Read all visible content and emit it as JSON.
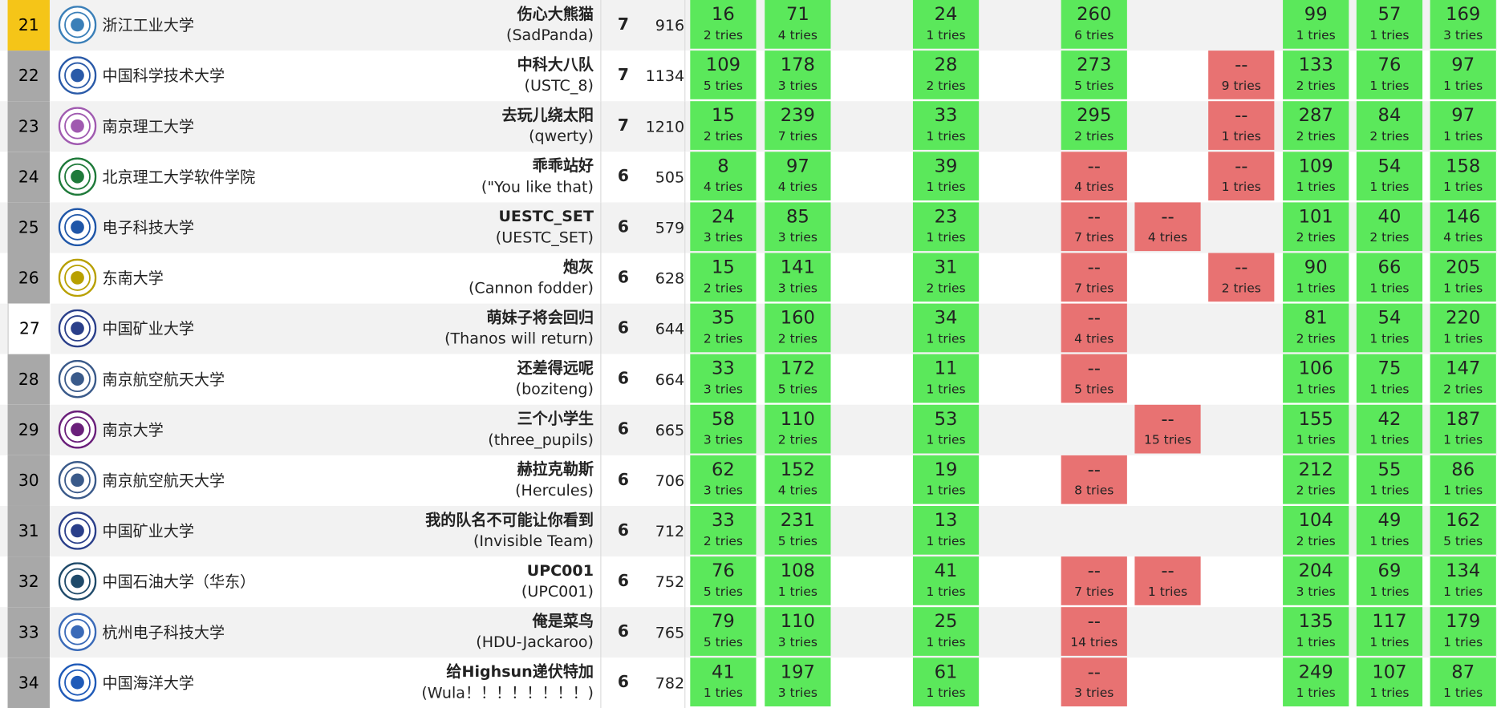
{
  "columns_left": [
    722,
    800,
    955,
    1110,
    1187,
    1264,
    1342,
    1419,
    1496
  ],
  "rows": [
    {
      "rank": "21",
      "rank_style": "gold",
      "school": "浙江工业大学",
      "team_cn": "伤心大熊猫",
      "team_en": "(SadPanda)",
      "solved": "7",
      "penalty": "916",
      "logo_color": "#3a7fb8",
      "cells": [
        {
          "s": "ac",
          "t": "16",
          "n": "2 tries"
        },
        {
          "s": "ac",
          "t": "71",
          "n": "4 tries"
        },
        {
          "s": "ac",
          "t": "24",
          "n": "1 tries"
        },
        {
          "s": "ac",
          "t": "260",
          "n": "6 tries"
        },
        null,
        null,
        {
          "s": "ac",
          "t": "99",
          "n": "1 tries"
        },
        {
          "s": "ac",
          "t": "57",
          "n": "1 tries"
        },
        {
          "s": "ac",
          "t": "169",
          "n": "3 tries"
        }
      ]
    },
    {
      "rank": "22",
      "rank_style": "grey",
      "school": "中国科学技术大学",
      "team_cn": "中科大八队",
      "team_en": "(USTC_8)",
      "solved": "7",
      "penalty": "1134",
      "logo_color": "#2a5aa8",
      "cells": [
        {
          "s": "ac",
          "t": "109",
          "n": "5 tries"
        },
        {
          "s": "ac",
          "t": "178",
          "n": "3 tries"
        },
        {
          "s": "ac",
          "t": "28",
          "n": "2 tries"
        },
        {
          "s": "ac",
          "t": "273",
          "n": "5 tries"
        },
        null,
        {
          "s": "wa",
          "t": "--",
          "n": "9 tries"
        },
        {
          "s": "ac",
          "t": "133",
          "n": "2 tries"
        },
        {
          "s": "ac",
          "t": "76",
          "n": "1 tries"
        },
        {
          "s": "ac",
          "t": "97",
          "n": "1 tries"
        }
      ]
    },
    {
      "rank": "23",
      "rank_style": "grey",
      "school": "南京理工大学",
      "team_cn": "去玩儿绕太阳",
      "team_en": "(qwerty)",
      "solved": "7",
      "penalty": "1210",
      "logo_color": "#a05ab0",
      "cells": [
        {
          "s": "ac",
          "t": "15",
          "n": "2 tries"
        },
        {
          "s": "ac",
          "t": "239",
          "n": "7 tries"
        },
        {
          "s": "ac",
          "t": "33",
          "n": "1 tries"
        },
        {
          "s": "ac",
          "t": "295",
          "n": "2 tries"
        },
        null,
        {
          "s": "wa",
          "t": "--",
          "n": "1 tries"
        },
        {
          "s": "ac",
          "t": "287",
          "n": "2 tries"
        },
        {
          "s": "ac",
          "t": "84",
          "n": "2 tries"
        },
        {
          "s": "ac",
          "t": "97",
          "n": "1 tries"
        }
      ]
    },
    {
      "rank": "24",
      "rank_style": "grey",
      "school": "北京理工大学软件学院",
      "team_cn": "乖乖站好",
      "team_en": "(\"You like that)",
      "solved": "6",
      "penalty": "505",
      "logo_color": "#1f7a3a",
      "cells": [
        {
          "s": "ac",
          "t": "8",
          "n": "4 tries"
        },
        {
          "s": "ac",
          "t": "97",
          "n": "4 tries"
        },
        {
          "s": "ac",
          "t": "39",
          "n": "1 tries"
        },
        {
          "s": "wa",
          "t": "--",
          "n": "4 tries"
        },
        null,
        {
          "s": "wa",
          "t": "--",
          "n": "1 tries"
        },
        {
          "s": "ac",
          "t": "109",
          "n": "1 tries"
        },
        {
          "s": "ac",
          "t": "54",
          "n": "1 tries"
        },
        {
          "s": "ac",
          "t": "158",
          "n": "1 tries"
        }
      ]
    },
    {
      "rank": "25",
      "rank_style": "grey",
      "school": "电子科技大学",
      "team_cn": "UESTC_SET",
      "team_en": "(UESTC_SET)",
      "solved": "6",
      "penalty": "579",
      "logo_color": "#1f56a8",
      "cells": [
        {
          "s": "ac",
          "t": "24",
          "n": "3 tries"
        },
        {
          "s": "ac",
          "t": "85",
          "n": "3 tries"
        },
        {
          "s": "ac",
          "t": "23",
          "n": "1 tries"
        },
        {
          "s": "wa",
          "t": "--",
          "n": "7 tries"
        },
        {
          "s": "wa",
          "t": "--",
          "n": "4 tries"
        },
        null,
        {
          "s": "ac",
          "t": "101",
          "n": "2 tries"
        },
        {
          "s": "ac",
          "t": "40",
          "n": "2 tries"
        },
        {
          "s": "ac",
          "t": "146",
          "n": "4 tries"
        }
      ]
    },
    {
      "rank": "26",
      "rank_style": "grey",
      "school": "东南大学",
      "team_cn": "炮灰",
      "team_en": "(Cannon fodder)",
      "solved": "6",
      "penalty": "628",
      "logo_color": "#b8a000",
      "cells": [
        {
          "s": "ac",
          "t": "15",
          "n": "2 tries"
        },
        {
          "s": "ac",
          "t": "141",
          "n": "3 tries"
        },
        {
          "s": "ac",
          "t": "31",
          "n": "2 tries"
        },
        {
          "s": "wa",
          "t": "--",
          "n": "7 tries"
        },
        null,
        {
          "s": "wa",
          "t": "--",
          "n": "2 tries"
        },
        {
          "s": "ac",
          "t": "90",
          "n": "1 tries"
        },
        {
          "s": "ac",
          "t": "66",
          "n": "1 tries"
        },
        {
          "s": "ac",
          "t": "205",
          "n": "1 tries"
        }
      ]
    },
    {
      "rank": "27",
      "rank_style": "white",
      "school": "中国矿业大学",
      "team_cn": "萌妹子将会回归",
      "team_en": "(Thanos will return)",
      "solved": "6",
      "penalty": "644",
      "logo_color": "#2a3f8a",
      "cells": [
        {
          "s": "ac",
          "t": "35",
          "n": "2 tries"
        },
        {
          "s": "ac",
          "t": "160",
          "n": "2 tries"
        },
        {
          "s": "ac",
          "t": "34",
          "n": "1 tries"
        },
        {
          "s": "wa",
          "t": "--",
          "n": "4 tries"
        },
        null,
        null,
        {
          "s": "ac",
          "t": "81",
          "n": "2 tries"
        },
        {
          "s": "ac",
          "t": "54",
          "n": "1 tries"
        },
        {
          "s": "ac",
          "t": "220",
          "n": "1 tries"
        }
      ]
    },
    {
      "rank": "28",
      "rank_style": "grey",
      "school": "南京航空航天大学",
      "team_cn": "还差得远呢",
      "team_en": "(boziteng)",
      "solved": "6",
      "penalty": "664",
      "logo_color": "#3a5a8a",
      "cells": [
        {
          "s": "ac",
          "t": "33",
          "n": "3 tries"
        },
        {
          "s": "ac",
          "t": "172",
          "n": "5 tries"
        },
        {
          "s": "ac",
          "t": "11",
          "n": "1 tries"
        },
        {
          "s": "wa",
          "t": "--",
          "n": "5 tries"
        },
        null,
        null,
        {
          "s": "ac",
          "t": "106",
          "n": "1 tries"
        },
        {
          "s": "ac",
          "t": "75",
          "n": "1 tries"
        },
        {
          "s": "ac",
          "t": "147",
          "n": "2 tries"
        }
      ]
    },
    {
      "rank": "29",
      "rank_style": "grey",
      "school": "南京大学",
      "team_cn": "三个小学生",
      "team_en": "(three_pupils)",
      "solved": "6",
      "penalty": "665",
      "logo_color": "#6a1f7a",
      "cells": [
        {
          "s": "ac",
          "t": "58",
          "n": "3 tries"
        },
        {
          "s": "ac",
          "t": "110",
          "n": "2 tries"
        },
        {
          "s": "ac",
          "t": "53",
          "n": "1 tries"
        },
        null,
        {
          "s": "wa",
          "t": "--",
          "n": "15 tries"
        },
        null,
        {
          "s": "ac",
          "t": "155",
          "n": "1 tries"
        },
        {
          "s": "ac",
          "t": "42",
          "n": "1 tries"
        },
        {
          "s": "ac",
          "t": "187",
          "n": "1 tries"
        }
      ]
    },
    {
      "rank": "30",
      "rank_style": "grey",
      "school": "南京航空航天大学",
      "team_cn": "赫拉克勒斯",
      "team_en": "(Hercules)",
      "solved": "6",
      "penalty": "706",
      "logo_color": "#3a5a8a",
      "cells": [
        {
          "s": "ac",
          "t": "62",
          "n": "3 tries"
        },
        {
          "s": "ac",
          "t": "152",
          "n": "4 tries"
        },
        {
          "s": "ac",
          "t": "19",
          "n": "1 tries"
        },
        {
          "s": "wa",
          "t": "--",
          "n": "8 tries"
        },
        null,
        null,
        {
          "s": "ac",
          "t": "212",
          "n": "2 tries"
        },
        {
          "s": "ac",
          "t": "55",
          "n": "1 tries"
        },
        {
          "s": "ac",
          "t": "86",
          "n": "1 tries"
        }
      ]
    },
    {
      "rank": "31",
      "rank_style": "grey",
      "school": "中国矿业大学",
      "team_cn": "我的队名不可能让你看到",
      "team_en": "(Invisible Team)",
      "solved": "6",
      "penalty": "712",
      "logo_color": "#2a3f8a",
      "cells": [
        {
          "s": "ac",
          "t": "33",
          "n": "2 tries"
        },
        {
          "s": "ac",
          "t": "231",
          "n": "5 tries"
        },
        {
          "s": "ac",
          "t": "13",
          "n": "1 tries"
        },
        null,
        null,
        null,
        {
          "s": "ac",
          "t": "104",
          "n": "2 tries"
        },
        {
          "s": "ac",
          "t": "49",
          "n": "1 tries"
        },
        {
          "s": "ac",
          "t": "162",
          "n": "5 tries"
        }
      ]
    },
    {
      "rank": "32",
      "rank_style": "grey",
      "school": "中国石油大学（华东）",
      "team_cn": "UPC001",
      "team_en": "(UPC001)",
      "solved": "6",
      "penalty": "752",
      "logo_color": "#1f4a6a",
      "cells": [
        {
          "s": "ac",
          "t": "76",
          "n": "5 tries"
        },
        {
          "s": "ac",
          "t": "108",
          "n": "1 tries"
        },
        {
          "s": "ac",
          "t": "41",
          "n": "1 tries"
        },
        {
          "s": "wa",
          "t": "--",
          "n": "7 tries"
        },
        {
          "s": "wa",
          "t": "--",
          "n": "1 tries"
        },
        null,
        {
          "s": "ac",
          "t": "204",
          "n": "3 tries"
        },
        {
          "s": "ac",
          "t": "69",
          "n": "1 tries"
        },
        {
          "s": "ac",
          "t": "134",
          "n": "1 tries"
        }
      ]
    },
    {
      "rank": "33",
      "rank_style": "grey",
      "school": "杭州电子科技大学",
      "team_cn": "俺是菜鸟",
      "team_en": "(HDU-Jackaroo)",
      "solved": "6",
      "penalty": "765",
      "logo_color": "#3a6ab8",
      "cells": [
        {
          "s": "ac",
          "t": "79",
          "n": "5 tries"
        },
        {
          "s": "ac",
          "t": "110",
          "n": "3 tries"
        },
        {
          "s": "ac",
          "t": "25",
          "n": "1 tries"
        },
        {
          "s": "wa",
          "t": "--",
          "n": "14 tries"
        },
        null,
        null,
        {
          "s": "ac",
          "t": "135",
          "n": "1 tries"
        },
        {
          "s": "ac",
          "t": "117",
          "n": "1 tries"
        },
        {
          "s": "ac",
          "t": "179",
          "n": "1 tries"
        }
      ]
    },
    {
      "rank": "34",
      "rank_style": "grey",
      "school": "中国海洋大学",
      "team_cn": "给Highsun递伏特加",
      "team_en": "(Wula！！！！！！！！)",
      "solved": "6",
      "penalty": "782",
      "logo_color": "#1f5ab8",
      "cells": [
        {
          "s": "ac",
          "t": "41",
          "n": "1 tries"
        },
        {
          "s": "ac",
          "t": "197",
          "n": "3 tries"
        },
        {
          "s": "ac",
          "t": "61",
          "n": "1 tries"
        },
        {
          "s": "wa",
          "t": "--",
          "n": "3 tries"
        },
        null,
        null,
        {
          "s": "ac",
          "t": "249",
          "n": "1 tries"
        },
        {
          "s": "ac",
          "t": "107",
          "n": "1 tries"
        },
        {
          "s": "ac",
          "t": "87",
          "n": "1 tries"
        }
      ]
    }
  ]
}
